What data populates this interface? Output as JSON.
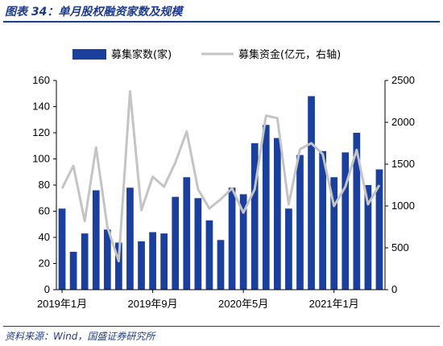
{
  "header": {
    "title": "图表 34：单月股权融资家数及规模"
  },
  "footer": {
    "source": "资料来源：Wind，国盛证券研究所"
  },
  "colors": {
    "bar": "#1a3f9c",
    "line": "#c4c4c4",
    "accent": "#1f3b8c"
  },
  "chart_data": {
    "type": "bar",
    "categories": [
      "2019-01",
      "2019-02",
      "2019-03",
      "2019-04",
      "2019-05",
      "2019-06",
      "2019-07",
      "2019-08",
      "2019-09",
      "2019-10",
      "2019-11",
      "2019-12",
      "2020-01",
      "2020-02",
      "2020-03",
      "2020-04",
      "2020-05",
      "2020-06",
      "2020-07",
      "2020-08",
      "2020-09",
      "2020-10",
      "2020-11",
      "2020-12",
      "2021-01",
      "2021-02",
      "2021-03",
      "2021-04",
      "2021-05"
    ],
    "x_tick_labels": [
      {
        "category": "2019-01",
        "label": "2019年1月"
      },
      {
        "category": "2019-09",
        "label": "2019年9月"
      },
      {
        "category": "2020-05",
        "label": "2020年5月"
      },
      {
        "category": "2021-01",
        "label": "2021年1月"
      }
    ],
    "series": [
      {
        "name": "募集家数(家)",
        "type": "bar",
        "axis": "left",
        "values": [
          62,
          29,
          43,
          76,
          46,
          36,
          78,
          37,
          44,
          43,
          71,
          86,
          70,
          53,
          38,
          78,
          73,
          112,
          126,
          116,
          62,
          103,
          148,
          106,
          86,
          105,
          120,
          80,
          92
        ]
      },
      {
        "name": "募集资金(亿元，右轴)",
        "type": "line",
        "axis": "right",
        "values": [
          1210,
          1480,
          820,
          1700,
          750,
          340,
          2370,
          950,
          1350,
          1230,
          1520,
          1890,
          1200,
          970,
          1080,
          1210,
          920,
          1200,
          2080,
          2050,
          1020,
          1680,
          1750,
          1620,
          1000,
          1230,
          1670,
          1020,
          1250
        ]
      }
    ],
    "y_left": {
      "min": 0,
      "max": 160,
      "ticks": [
        0,
        20,
        40,
        60,
        80,
        100,
        120,
        140,
        160
      ]
    },
    "y_right": {
      "min": 0,
      "max": 2500,
      "ticks": [
        0,
        500,
        1000,
        1500,
        2000,
        2500
      ]
    },
    "legend_position": "top",
    "grid": false
  }
}
